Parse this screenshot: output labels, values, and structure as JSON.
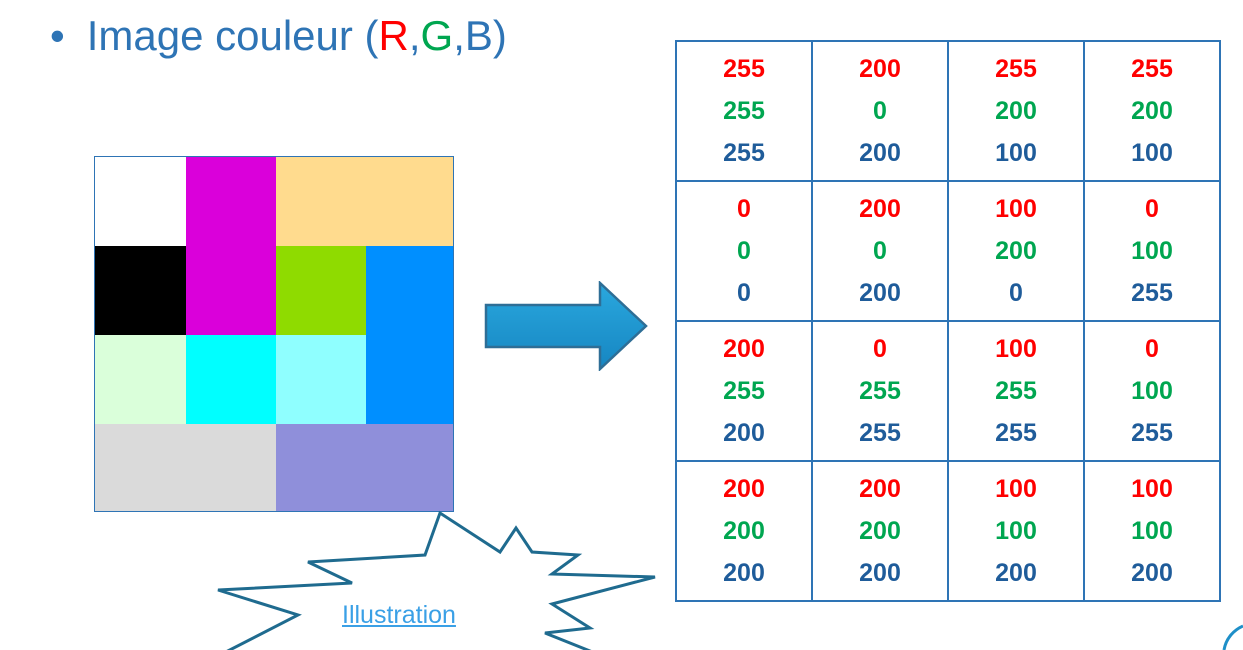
{
  "heading": {
    "bullet": "•",
    "prefix": "Image couleur (",
    "r": "R",
    "comma1": ",",
    "g": "G",
    "comma2": ",",
    "b": "B",
    "suffix": ")"
  },
  "colors": {
    "text_blue": "#2E74B5",
    "r_label": "#FF0000",
    "g_label": "#00A650",
    "b_label": "#1F5C9A",
    "arrow_fill": "#1E96D0",
    "arrow_stroke": "#2E6E96"
  },
  "pixel_image": {
    "regions": [
      {
        "name": "white",
        "color": "#FFFFFF"
      },
      {
        "name": "magenta",
        "color": "#DA00DA"
      },
      {
        "name": "peach",
        "color": "#FFDB8E"
      },
      {
        "name": "black",
        "color": "#000000"
      },
      {
        "name": "green",
        "color": "#8FDB00"
      },
      {
        "name": "blue",
        "color": "#008FFF"
      },
      {
        "name": "pale-green",
        "color": "#DAFFDA"
      },
      {
        "name": "cyan",
        "color": "#00FFFF"
      },
      {
        "name": "light-cyan",
        "color": "#8FFFFF"
      },
      {
        "name": "light-gray",
        "color": "#DADADA"
      },
      {
        "name": "lavender",
        "color": "#8F8FDA"
      }
    ]
  },
  "matrix": {
    "rows": [
      [
        {
          "r": "255",
          "g": "255",
          "b": "255"
        },
        {
          "r": "200",
          "g": "0",
          "b": "200"
        },
        {
          "r": "255",
          "g": "200",
          "b": "100"
        },
        {
          "r": "255",
          "g": "200",
          "b": "100"
        }
      ],
      [
        {
          "r": "0",
          "g": "0",
          "b": "0"
        },
        {
          "r": "200",
          "g": "0",
          "b": "200"
        },
        {
          "r": "100",
          "g": "200",
          "b": "0"
        },
        {
          "r": "0",
          "g": "100",
          "b": "255"
        }
      ],
      [
        {
          "r": "200",
          "g": "255",
          "b": "200"
        },
        {
          "r": "0",
          "g": "255",
          "b": "255"
        },
        {
          "r": "100",
          "g": "255",
          "b": "255"
        },
        {
          "r": "0",
          "g": "100",
          "b": "255"
        }
      ],
      [
        {
          "r": "200",
          "g": "200",
          "b": "200"
        },
        {
          "r": "200",
          "g": "200",
          "b": "200"
        },
        {
          "r": "100",
          "g": "100",
          "b": "200"
        },
        {
          "r": "100",
          "g": "100",
          "b": "200"
        }
      ]
    ]
  },
  "callout": {
    "link_text": "Illustration"
  }
}
